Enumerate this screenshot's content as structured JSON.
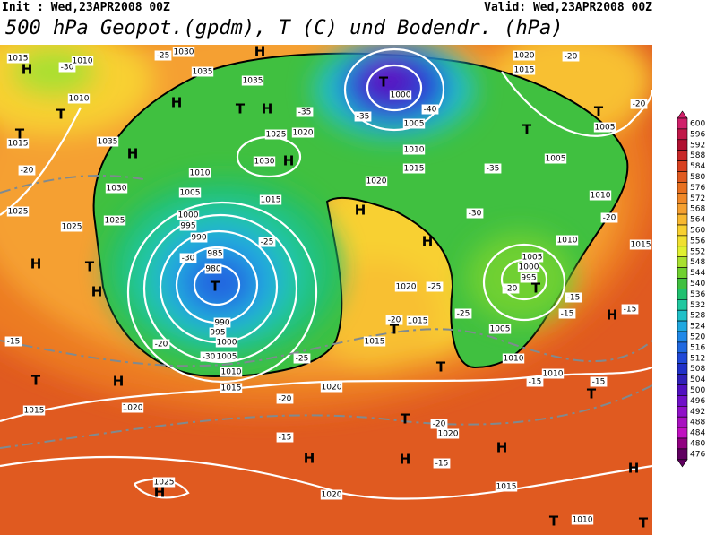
{
  "header": {
    "init": "Init : Wed,23APR2008 00Z",
    "valid": "Valid: Wed,23APR2008 00Z",
    "title": "500 hPa Geopot.(gpdm), T (C) und Bodendr. (hPa)"
  },
  "colorbar": {
    "levels": [
      600,
      596,
      592,
      588,
      584,
      580,
      576,
      572,
      568,
      564,
      560,
      556,
      552,
      548,
      544,
      540,
      536,
      532,
      528,
      524,
      520,
      516,
      512,
      508,
      504,
      500,
      496,
      492,
      488,
      484,
      480,
      476
    ],
    "colors": [
      "#d0206a",
      "#c01848",
      "#b01030",
      "#c82828",
      "#d84020",
      "#e05a20",
      "#e87020",
      "#f08828",
      "#f5a030",
      "#f8b830",
      "#f8d030",
      "#f0e030",
      "#e0f030",
      "#a8e030",
      "#70d030",
      "#40c040",
      "#20c070",
      "#20c8a0",
      "#20c0c8",
      "#20a8e0",
      "#2088e8",
      "#2068e0",
      "#2048d8",
      "#2030c8",
      "#3020b8",
      "#5010c0",
      "#7010c8",
      "#9010c8",
      "#a810c0",
      "#c010c0",
      "#900080",
      "#600060"
    ]
  },
  "map_labels": [
    "1015",
    "H",
    "-30",
    "1010",
    "-25",
    "1030",
    "1035",
    "H",
    "1035",
    "1010",
    "T",
    "H",
    "T",
    "H",
    "-35",
    "T",
    "1000",
    "-40",
    "1005",
    "-35",
    "1020",
    "-20",
    "1015",
    "-20",
    "T",
    "T",
    "1005",
    "1035",
    "H",
    "1010",
    "1020",
    "1025",
    "H",
    "1030",
    "1010",
    "1015",
    "1020",
    "-35",
    "1005",
    "-20",
    "1015",
    "T",
    "1030",
    "1005",
    "1015",
    "H",
    "-30",
    "1010",
    "-20",
    "1025",
    "1000",
    "995",
    "990",
    "-25",
    "1025",
    "1025",
    "H",
    "T",
    "H",
    "985",
    "980",
    "T",
    "-30",
    "H",
    "1005",
    "1000",
    "995",
    "-20",
    "T",
    "1010",
    "1015",
    "-15",
    "-15",
    "H",
    "-15",
    "1020",
    "-25",
    "-20",
    "1015",
    "T",
    "-25",
    "990",
    "995",
    "1000",
    "1005",
    "1010",
    "1015",
    "-30",
    "-25",
    "-20",
    "-15",
    "1015",
    "1005",
    "1010",
    "T",
    "1010",
    "-15",
    "-15",
    "T",
    "T",
    "H",
    "1020",
    "1015",
    "1020",
    "-20",
    "-20",
    "1020",
    "T",
    "-15",
    "H",
    "H",
    "H",
    "-15",
    "1025",
    "H",
    "1020",
    "1015",
    "H",
    "T",
    "T",
    "1010"
  ]
}
